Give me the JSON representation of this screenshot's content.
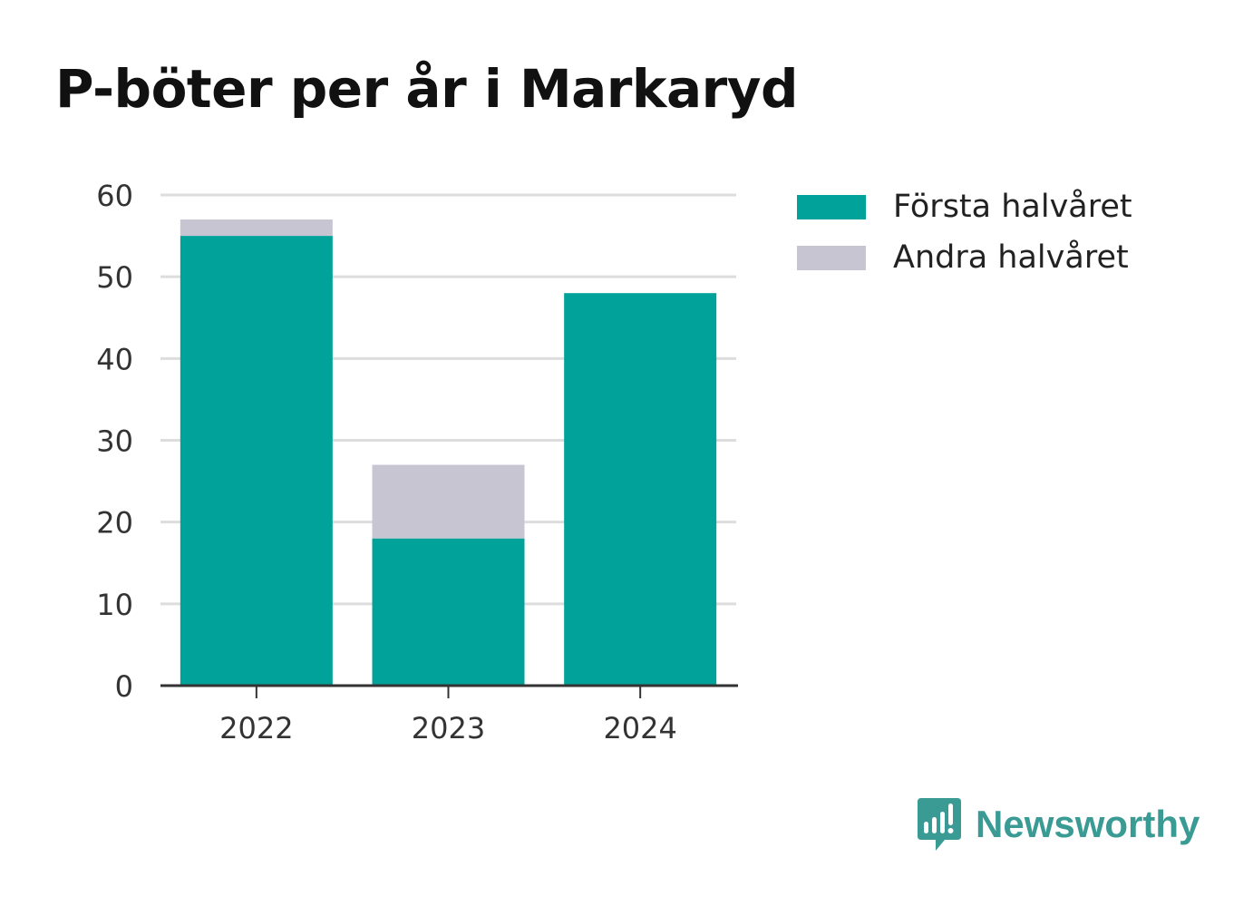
{
  "chart_data": {
    "type": "bar",
    "stacked": true,
    "title": "P-böter per år i Markaryd",
    "categories": [
      "2022",
      "2023",
      "2024"
    ],
    "series": [
      {
        "name": "Första halvåret",
        "values": [
          55,
          18,
          48
        ],
        "color": "#00a29a"
      },
      {
        "name": "Andra halvåret",
        "values": [
          2,
          9,
          0
        ],
        "color": "#c6c5d1"
      }
    ],
    "ylim": [
      0,
      60
    ],
    "yticks": [
      "0",
      "10",
      "20",
      "30",
      "40",
      "50",
      "60"
    ],
    "grid": true,
    "legend_position": "right"
  },
  "brand": {
    "name": "Newsworthy",
    "icon": "bar-chart-speech-bubble-icon",
    "color": "#3a9a94"
  }
}
